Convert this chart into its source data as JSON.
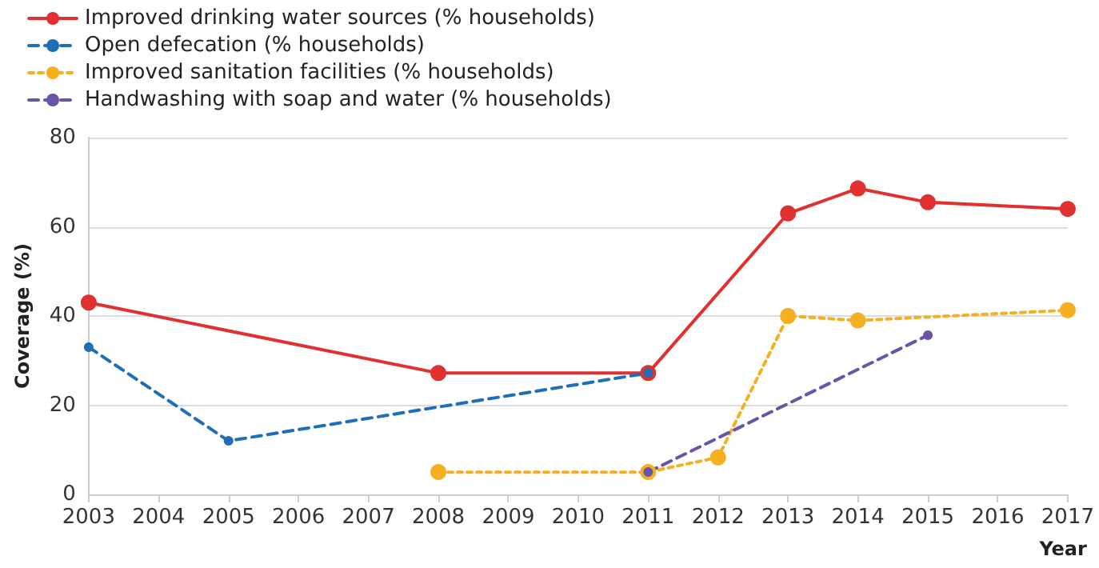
{
  "chart_data": {
    "type": "line",
    "xlabel": "Year",
    "ylabel": "Coverage (%)",
    "x": [
      2003,
      2005,
      2008,
      2011,
      2012,
      2013,
      2014,
      2015,
      2017
    ],
    "series": [
      {
        "name": "Improved drinking water sources (% households)",
        "color": "#e03030",
        "line_style": "solid",
        "values": [
          43,
          null,
          27.2,
          27.2,
          null,
          63,
          68.6,
          65.5,
          64
        ]
      },
      {
        "name": "Open defecation (% households)",
        "color": "#1f6fb8",
        "line_style": "dashed",
        "values": [
          33,
          12,
          null,
          27.2,
          null,
          null,
          null,
          null,
          null
        ]
      },
      {
        "name": "Improved sanitation facilities (% households)",
        "color": "#f5b021",
        "line_style": "dotted",
        "values": [
          null,
          null,
          5,
          5,
          8.3,
          40,
          39,
          null,
          41.3
        ]
      },
      {
        "name": "Handwashing with soap and water (% households)",
        "color": "#6a54a8",
        "line_style": "dashed",
        "values": [
          null,
          null,
          null,
          5,
          null,
          null,
          null,
          35.7,
          null
        ]
      }
    ],
    "xlim": [
      2003,
      2017
    ],
    "xticks": [
      2003,
      2004,
      2005,
      2006,
      2007,
      2008,
      2009,
      2010,
      2011,
      2012,
      2013,
      2014,
      2015,
      2016,
      2017
    ],
    "ylim": [
      0,
      80
    ],
    "yticks": [
      0,
      20,
      40,
      60,
      80
    ],
    "grid": "y",
    "legend": "top left",
    "marker": "circle"
  }
}
